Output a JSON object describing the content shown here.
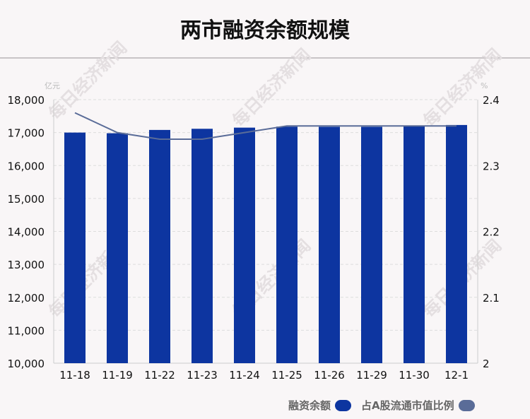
{
  "title": "两市融资余额规模",
  "chart_data": {
    "type": "bar",
    "title": "两市融资余额规模",
    "categories": [
      "11-18",
      "11-19",
      "11-22",
      "11-23",
      "11-24",
      "11-25",
      "11-26",
      "11-29",
      "11-30",
      "12-1"
    ],
    "left_unit": "亿元",
    "right_unit": "%",
    "left_ylim": [
      10000,
      18000
    ],
    "left_ticks": [
      "10,000",
      "11,000",
      "12,000",
      "13,000",
      "14,000",
      "15,000",
      "16,000",
      "17,000",
      "18,000"
    ],
    "right_ylim": [
      2,
      2.4
    ],
    "right_ticks": [
      "2",
      "2.1",
      "2.2",
      "2.3",
      "2.4"
    ],
    "grid": true,
    "legend_placement": "bottom-right",
    "series": [
      {
        "name": "融资余额",
        "type": "bar",
        "axis": "left",
        "color": "#0d35a0",
        "values": [
          17000,
          16980,
          17080,
          17115,
          17150,
          17180,
          17175,
          17175,
          17205,
          17230
        ]
      },
      {
        "name": "占A股流通市值比例",
        "type": "line",
        "axis": "right",
        "color": "#5a6c98",
        "values": [
          2.38,
          2.35,
          2.34,
          2.34,
          2.35,
          2.36,
          2.36,
          2.36,
          2.36,
          2.36
        ]
      }
    ]
  },
  "watermark": "每日经济新闻"
}
